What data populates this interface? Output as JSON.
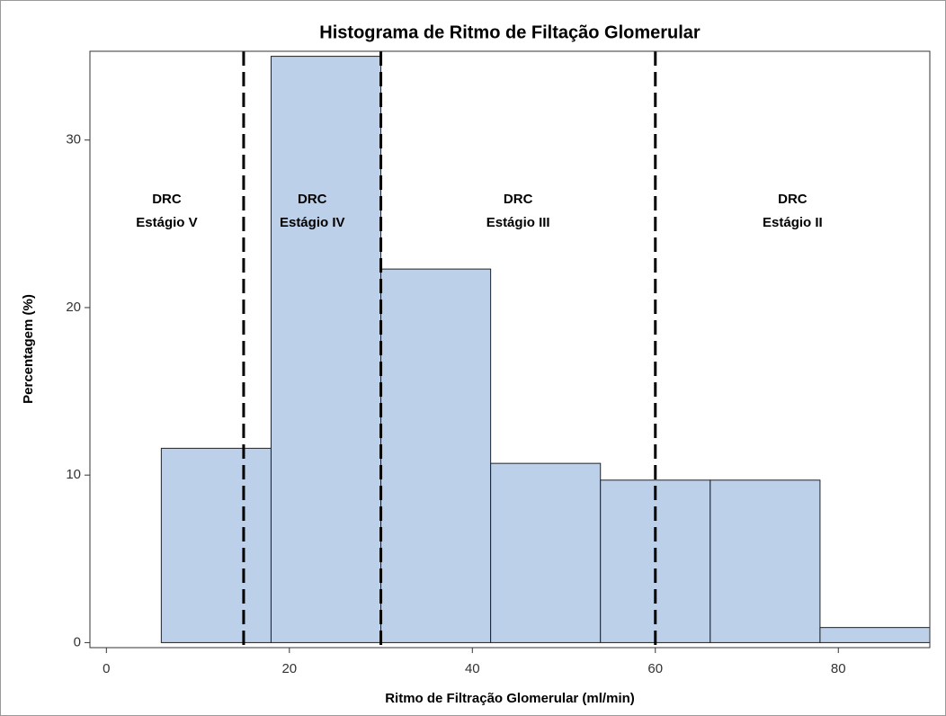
{
  "chart_data": {
    "type": "histogram",
    "title": "Histograma de Ritmo de Filtação Glomerular",
    "x_label": "Ritmo de Filtração Glomerular (ml/min)",
    "y_label": "Percentagem (%)",
    "bins": [
      6,
      18,
      30,
      42,
      54,
      66,
      78,
      90
    ],
    "values": [
      11.6,
      35,
      22.3,
      10.7,
      9.7,
      9.7,
      0.9
    ],
    "color": "#bdd0e9",
    "xlim": [
      -1.8,
      90
    ],
    "ylim": [
      -0.3,
      35.3
    ],
    "xticks": [
      0,
      20,
      40,
      60,
      80
    ],
    "yticks": [
      0,
      10,
      20,
      30
    ],
    "reference_lines": [
      15,
      30,
      60
    ],
    "annotations": [
      [
        "DRC",
        "Estágio V"
      ],
      [
        "DRC",
        "Estágio IV"
      ],
      [
        "DRC",
        "Estágio III"
      ],
      [
        "DRC",
        "Estágio II"
      ]
    ]
  }
}
